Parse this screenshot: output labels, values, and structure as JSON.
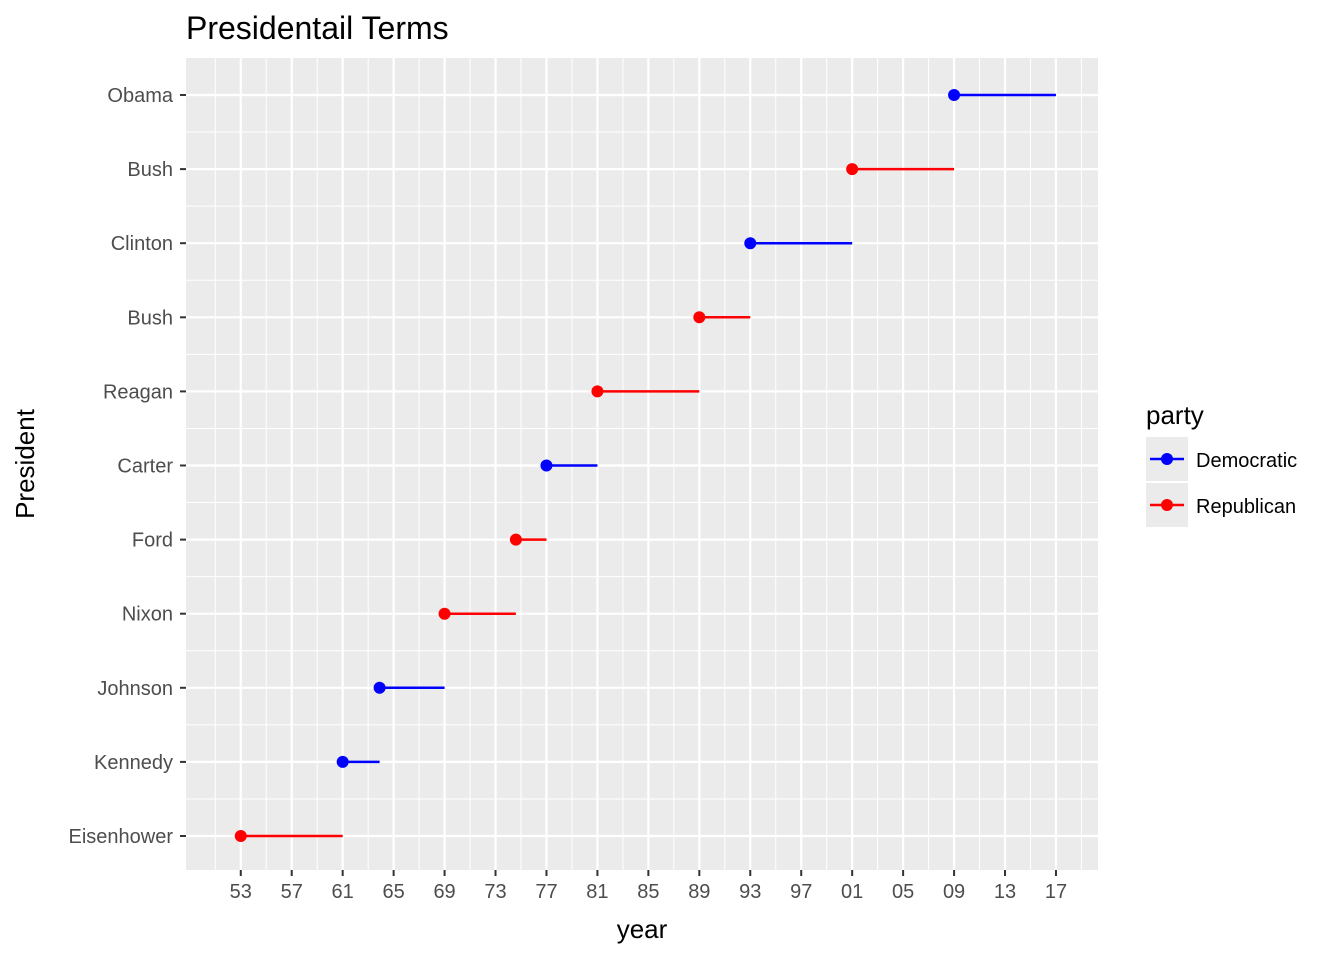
{
  "chart_data": {
    "type": "line",
    "title": "Presidentail Terms",
    "xlabel": "year",
    "ylabel": "President",
    "x_ticks": [
      1953,
      1957,
      1961,
      1965,
      1969,
      1973,
      1977,
      1981,
      1985,
      1989,
      1993,
      1997,
      2001,
      2005,
      2009,
      2013,
      2017
    ],
    "x_tick_labels": [
      "53",
      "57",
      "61",
      "65",
      "69",
      "73",
      "77",
      "81",
      "85",
      "89",
      "93",
      "97",
      "01",
      "05",
      "09",
      "13",
      "17"
    ],
    "xlim": [
      1948.7,
      2020.3
    ],
    "categories": [
      "Eisenhower",
      "Kennedy",
      "Johnson",
      "Nixon",
      "Ford",
      "Carter",
      "Reagan",
      "Bush",
      "Clinton",
      "Bush",
      "Obama"
    ],
    "terms": [
      {
        "president": "Eisenhower",
        "start": 1953,
        "end": 1961,
        "party": "Republican"
      },
      {
        "president": "Kennedy",
        "start": 1961,
        "end": 1963.9,
        "party": "Democratic"
      },
      {
        "president": "Johnson",
        "start": 1963.9,
        "end": 1969,
        "party": "Democratic"
      },
      {
        "president": "Nixon",
        "start": 1969,
        "end": 1974.6,
        "party": "Republican"
      },
      {
        "president": "Ford",
        "start": 1974.6,
        "end": 1977,
        "party": "Republican"
      },
      {
        "president": "Carter",
        "start": 1977,
        "end": 1981,
        "party": "Democratic"
      },
      {
        "president": "Reagan",
        "start": 1981,
        "end": 1989,
        "party": "Republican"
      },
      {
        "president": "Bush",
        "start": 1989,
        "end": 1993,
        "party": "Republican"
      },
      {
        "president": "Clinton",
        "start": 1993,
        "end": 2001,
        "party": "Democratic"
      },
      {
        "president": "Bush",
        "start": 2001,
        "end": 2009,
        "party": "Republican"
      },
      {
        "president": "Obama",
        "start": 2009,
        "end": 2017,
        "party": "Democratic"
      }
    ],
    "legend": {
      "title": "party",
      "position": "right",
      "entries": [
        {
          "name": "Democratic",
          "color": "#0000ff"
        },
        {
          "name": "Republican",
          "color": "#ff0000"
        }
      ]
    },
    "grid": true,
    "panel_background": "#ebebeb",
    "grid_color": "#ffffff"
  }
}
